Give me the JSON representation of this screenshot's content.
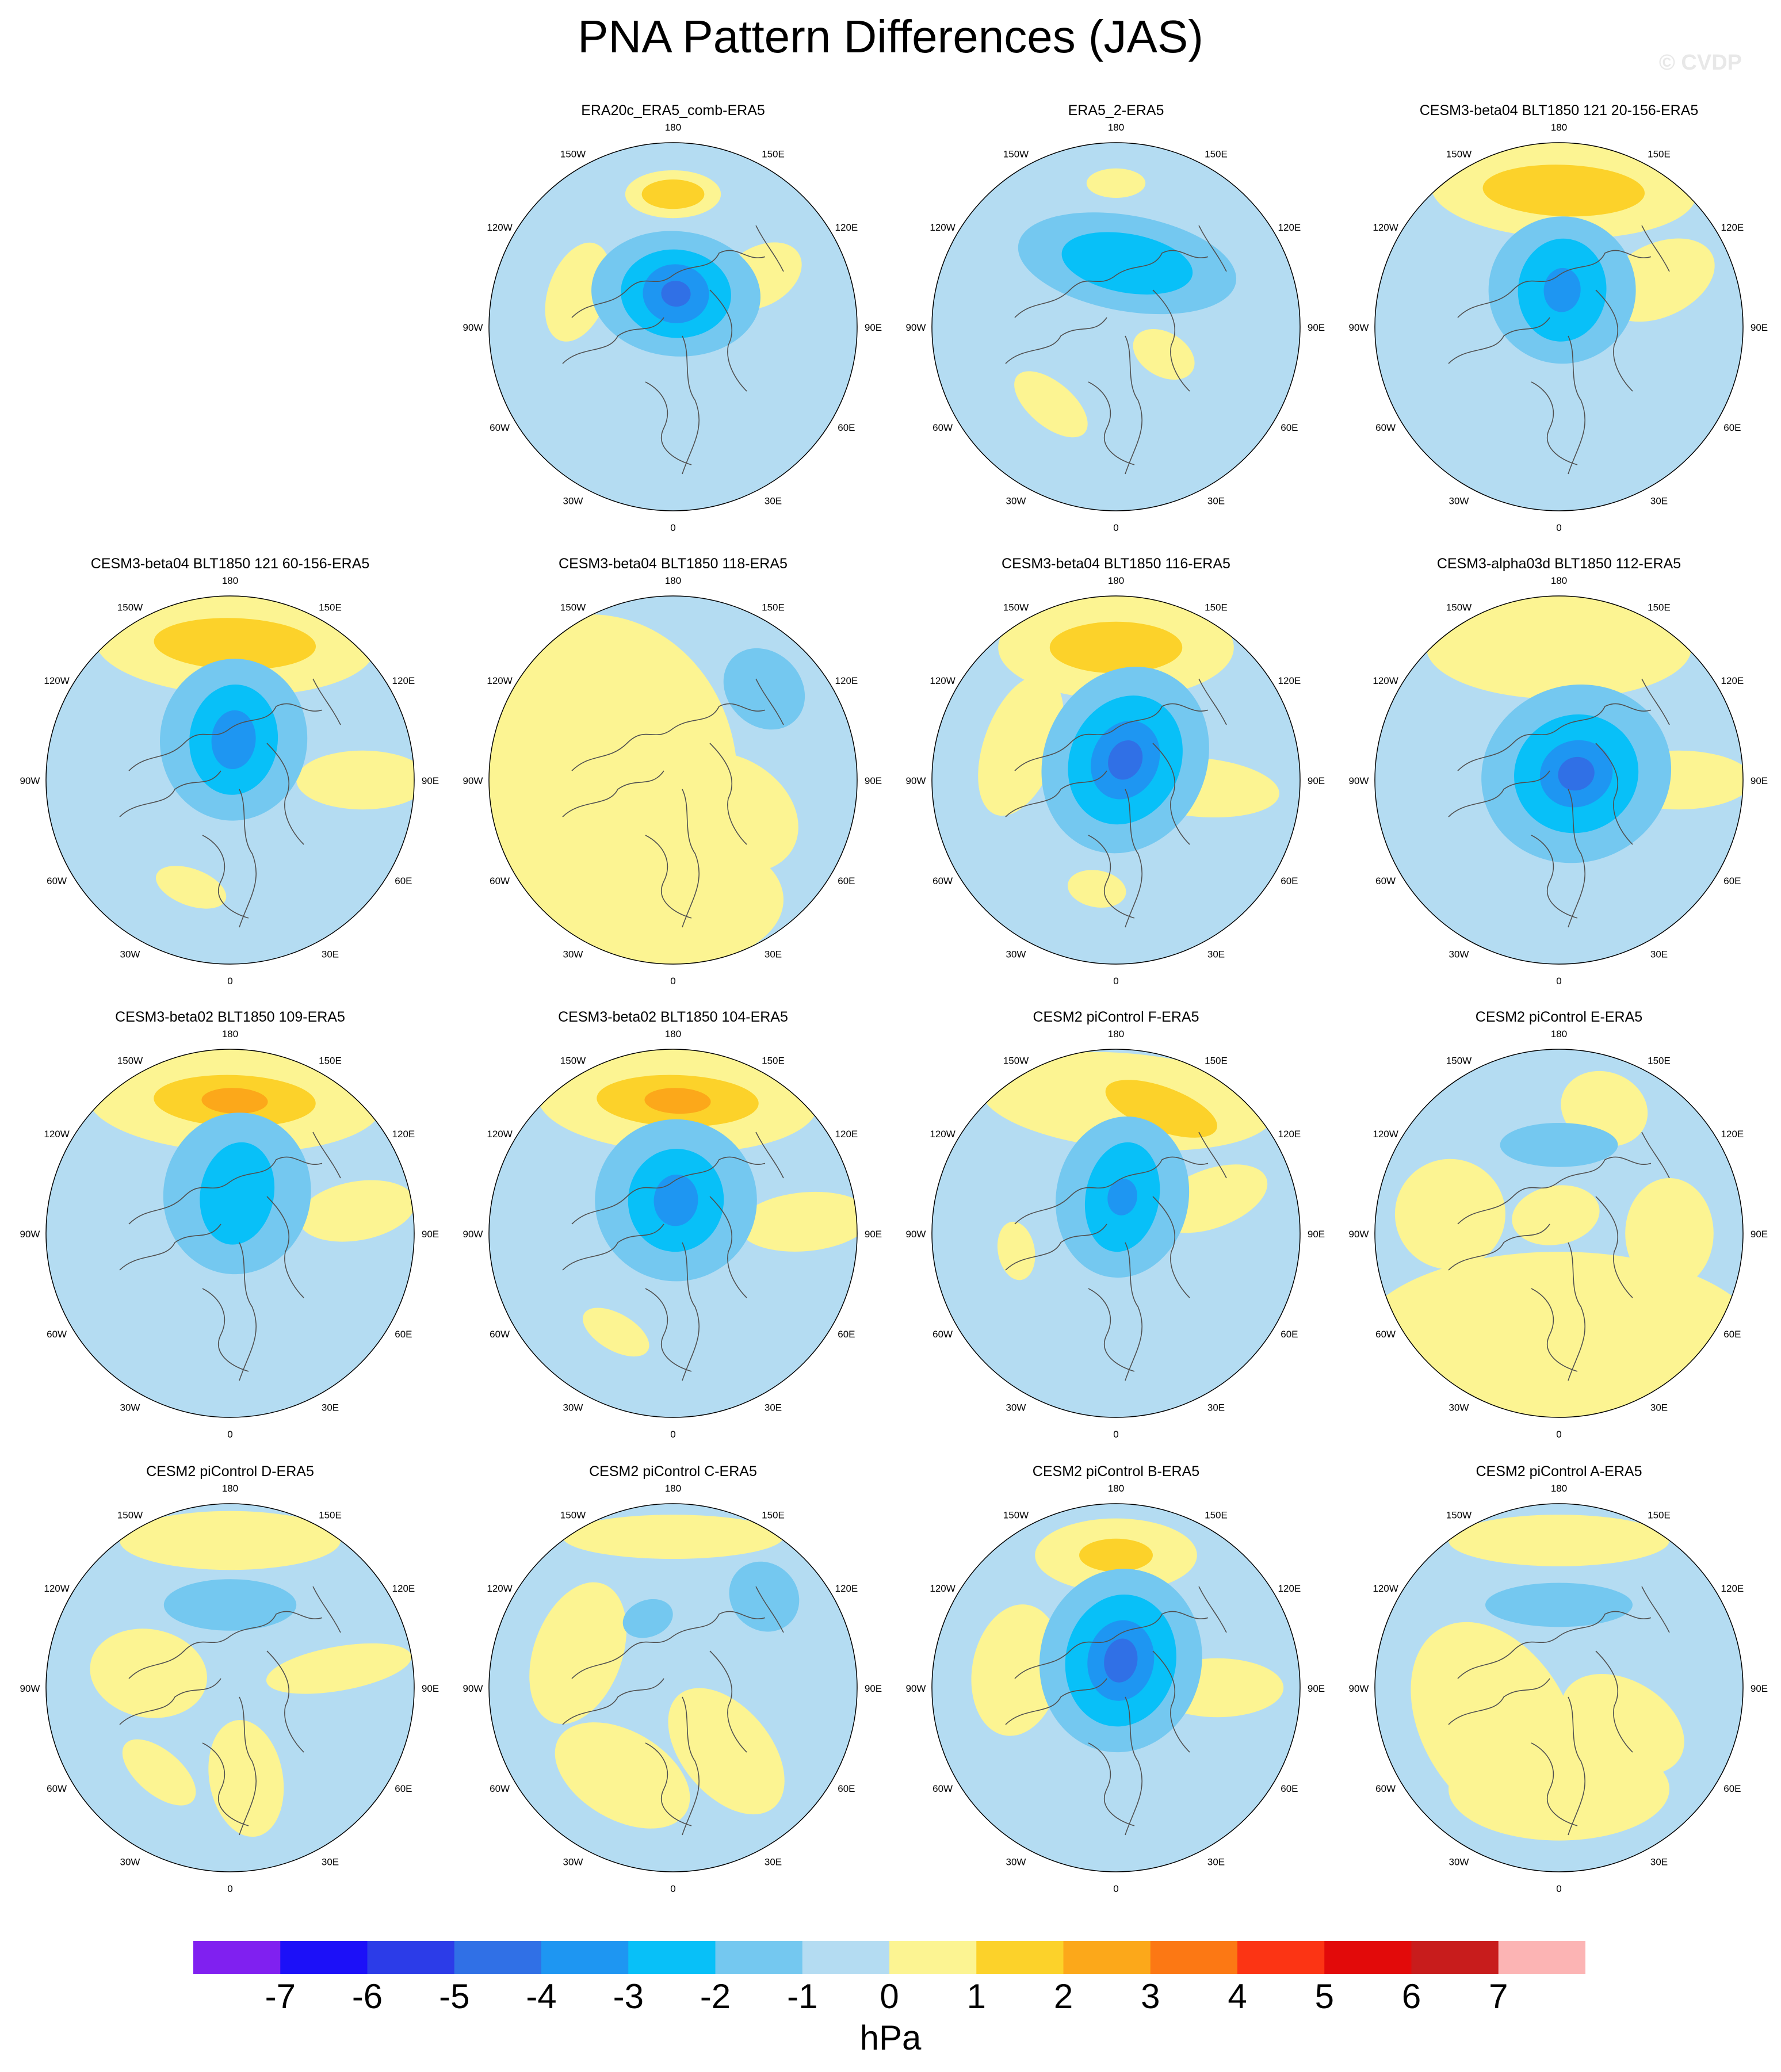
{
  "title": "PNA Pattern Differences (JAS)",
  "watermark": "© CVDP",
  "units": "hPa",
  "colorbar": {
    "ticks": [
      "-7",
      "-6",
      "-5",
      "-4",
      "-3",
      "-2",
      "-1",
      "0",
      "1",
      "2",
      "3",
      "4",
      "5",
      "6",
      "7"
    ],
    "colors": [
      "#8020f0",
      "#1c10f8",
      "#2c3ce8",
      "#3070e6",
      "#1e96f2",
      "#08c0f8",
      "#74c8f0",
      "#b4dcf2",
      "#fcf492",
      "#fcd22a",
      "#fca81a",
      "#fc7814",
      "#fc3414",
      "#e20a0a",
      "#c81c1c",
      "#fcb4b4"
    ]
  },
  "map_style": {
    "ocean_color": "#b4dcf2",
    "coast_color": "#505050",
    "lon_labels": [
      "0",
      "30E",
      "60E",
      "90E",
      "120E",
      "150E",
      "180",
      "150W",
      "120W",
      "90W",
      "60W",
      "30W"
    ]
  },
  "panels": [
    {
      "title": "ERA20c_ERA5_comb-ERA5",
      "row": 0,
      "col": 1,
      "feat": [
        {
          "lon": 180,
          "r": 0.72,
          "rx": 0.13,
          "ry": 0.065,
          "lvl": 1
        },
        {
          "lon": 180,
          "r": 0.72,
          "rx": 0.085,
          "ry": 0.04,
          "lvl": 2
        },
        {
          "lon": -110,
          "r": 0.55,
          "rx": 0.14,
          "ry": 0.08,
          "lvl": 1
        },
        {
          "lon": 120,
          "r": 0.55,
          "rx": 0.08,
          "ry": 0.12,
          "lvl": 1
        },
        {
          "lon": 175,
          "r": 0.18,
          "rx": 0.23,
          "ry": 0.17,
          "lvl": -1
        },
        {
          "lon": 175,
          "r": 0.18,
          "rx": 0.15,
          "ry": 0.12,
          "lvl": -2
        },
        {
          "lon": 175,
          "r": 0.18,
          "rx": 0.09,
          "ry": 0.08,
          "lvl": -3
        },
        {
          "lon": 175,
          "r": 0.18,
          "rx": 0.04,
          "ry": 0.035,
          "lvl": -4
        }
      ]
    },
    {
      "title": "ERA5_2-ERA5",
      "row": 0,
      "col": 2,
      "feat": [
        {
          "lon": 180,
          "r": 0.78,
          "rx": 0.08,
          "ry": 0.04,
          "lvl": 1
        },
        {
          "lon": -40,
          "r": 0.55,
          "rx": 0.12,
          "ry": 0.06,
          "lvl": 1
        },
        {
          "lon": 60,
          "r": 0.3,
          "rx": 0.06,
          "ry": 0.09,
          "lvl": 1
        },
        {
          "lon": 170,
          "r": 0.35,
          "rx": 0.3,
          "ry": 0.13,
          "lvl": -1
        },
        {
          "lon": 170,
          "r": 0.35,
          "rx": 0.18,
          "ry": 0.08,
          "lvl": -2
        }
      ]
    },
    {
      "title": "CESM3-beta04 BLT1850 121 20-156-ERA5",
      "row": 0,
      "col": 3,
      "feat": [
        {
          "lon": 178,
          "r": 0.74,
          "rx": 0.36,
          "ry": 0.13,
          "lvl": 1
        },
        {
          "lon": 178,
          "r": 0.74,
          "rx": 0.22,
          "ry": 0.07,
          "lvl": 2
        },
        {
          "lon": 115,
          "r": 0.6,
          "rx": 0.1,
          "ry": 0.16,
          "lvl": 1
        },
        {
          "lon": 175,
          "r": 0.2,
          "rx": 0.2,
          "ry": 0.2,
          "lvl": -1
        },
        {
          "lon": 175,
          "r": 0.2,
          "rx": 0.12,
          "ry": 0.14,
          "lvl": -2
        },
        {
          "lon": 175,
          "r": 0.2,
          "rx": 0.05,
          "ry": 0.06,
          "lvl": -3
        }
      ]
    },
    {
      "title": "CESM3-beta04 BLT1850 121 60-156-ERA5",
      "row": 1,
      "col": 0,
      "feat": [
        {
          "lon": 178,
          "r": 0.74,
          "rx": 0.38,
          "ry": 0.14,
          "lvl": 1
        },
        {
          "lon": 178,
          "r": 0.74,
          "rx": 0.22,
          "ry": 0.07,
          "lvl": 2
        },
        {
          "lon": -20,
          "r": 0.62,
          "rx": 0.1,
          "ry": 0.05,
          "lvl": 1
        },
        {
          "lon": 90,
          "r": 0.72,
          "rx": 0.08,
          "ry": 0.18,
          "lvl": 1
        },
        {
          "lon": 175,
          "r": 0.22,
          "rx": 0.2,
          "ry": 0.22,
          "lvl": -1
        },
        {
          "lon": 175,
          "r": 0.22,
          "rx": 0.12,
          "ry": 0.15,
          "lvl": -2
        },
        {
          "lon": 175,
          "r": 0.22,
          "rx": 0.06,
          "ry": 0.08,
          "lvl": -3
        }
      ]
    },
    {
      "title": "CESM3-beta04 BLT1850 118-ERA5",
      "row": 1,
      "col": 1,
      "feat": [
        {
          "lon": -90,
          "r": 0.45,
          "rx": 0.45,
          "ry": 0.4,
          "lvl": 1
        },
        {
          "lon": 0,
          "r": 0.65,
          "rx": 0.3,
          "ry": 0.18,
          "lvl": 1
        },
        {
          "lon": 60,
          "r": 0.35,
          "rx": 0.15,
          "ry": 0.2,
          "lvl": 1
        },
        {
          "lon": 135,
          "r": 0.7,
          "rx": 0.12,
          "ry": 0.1,
          "lvl": -1
        }
      ]
    },
    {
      "title": "CESM3-beta04 BLT1850 116-ERA5",
      "row": 1,
      "col": 2,
      "feat": [
        {
          "lon": 180,
          "r": 0.72,
          "rx": 0.32,
          "ry": 0.14,
          "lvl": 1
        },
        {
          "lon": 180,
          "r": 0.72,
          "rx": 0.18,
          "ry": 0.07,
          "lvl": 2
        },
        {
          "lon": -110,
          "r": 0.55,
          "rx": 0.2,
          "ry": 0.1,
          "lvl": 1
        },
        {
          "lon": 85,
          "r": 0.45,
          "rx": 0.08,
          "ry": 0.22,
          "lvl": 1
        },
        {
          "lon": -10,
          "r": 0.6,
          "rx": 0.08,
          "ry": 0.05,
          "lvl": 1
        },
        {
          "lon": 155,
          "r": 0.12,
          "rx": 0.22,
          "ry": 0.26,
          "lvl": -1
        },
        {
          "lon": 155,
          "r": 0.12,
          "rx": 0.15,
          "ry": 0.18,
          "lvl": -2
        },
        {
          "lon": 155,
          "r": 0.12,
          "rx": 0.09,
          "ry": 0.11,
          "lvl": -3
        },
        {
          "lon": 155,
          "r": 0.12,
          "rx": 0.045,
          "ry": 0.055,
          "lvl": -4
        }
      ]
    },
    {
      "title": "CESM3-alpha03d BLT1850 112-ERA5",
      "row": 1,
      "col": 3,
      "feat": [
        {
          "lon": 180,
          "r": 0.72,
          "rx": 0.36,
          "ry": 0.14,
          "lvl": 1
        },
        {
          "lon": 90,
          "r": 0.65,
          "rx": 0.08,
          "ry": 0.2,
          "lvl": 1
        },
        {
          "lon": -60,
          "r": 0.3,
          "rx": 0.06,
          "ry": 0.06,
          "lvl": 1
        },
        {
          "lon": 110,
          "r": 0.1,
          "rx": 0.24,
          "ry": 0.26,
          "lvl": -1
        },
        {
          "lon": 110,
          "r": 0.1,
          "rx": 0.16,
          "ry": 0.17,
          "lvl": -2
        },
        {
          "lon": 110,
          "r": 0.1,
          "rx": 0.09,
          "ry": 0.1,
          "lvl": -3
        },
        {
          "lon": 110,
          "r": 0.1,
          "rx": 0.045,
          "ry": 0.05,
          "lvl": -4
        }
      ]
    },
    {
      "title": "CESM3-beta02 BLT1850 109-ERA5",
      "row": 2,
      "col": 0,
      "feat": [
        {
          "lon": 178,
          "r": 0.72,
          "rx": 0.4,
          "ry": 0.14,
          "lvl": 1
        },
        {
          "lon": 178,
          "r": 0.72,
          "rx": 0.22,
          "ry": 0.07,
          "lvl": 2
        },
        {
          "lon": 178,
          "r": 0.72,
          "rx": 0.09,
          "ry": 0.035,
          "lvl": 3
        },
        {
          "lon": 100,
          "r": 0.7,
          "rx": 0.08,
          "ry": 0.16,
          "lvl": 1
        },
        {
          "lon": 170,
          "r": 0.22,
          "rx": 0.2,
          "ry": 0.22,
          "lvl": -1
        },
        {
          "lon": 170,
          "r": 0.22,
          "rx": 0.1,
          "ry": 0.14,
          "lvl": -2
        }
      ]
    },
    {
      "title": "CESM3-beta02 BLT1850 104-ERA5",
      "row": 2,
      "col": 1,
      "feat": [
        {
          "lon": 178,
          "r": 0.72,
          "rx": 0.38,
          "ry": 0.14,
          "lvl": 1
        },
        {
          "lon": 178,
          "r": 0.72,
          "rx": 0.22,
          "ry": 0.07,
          "lvl": 2
        },
        {
          "lon": 178,
          "r": 0.72,
          "rx": 0.09,
          "ry": 0.035,
          "lvl": 3
        },
        {
          "lon": -30,
          "r": 0.62,
          "rx": 0.1,
          "ry": 0.05,
          "lvl": 1
        },
        {
          "lon": 95,
          "r": 0.72,
          "rx": 0.08,
          "ry": 0.18,
          "lvl": 1
        },
        {
          "lon": 175,
          "r": 0.18,
          "rx": 0.22,
          "ry": 0.22,
          "lvl": -1
        },
        {
          "lon": 175,
          "r": 0.18,
          "rx": 0.13,
          "ry": 0.14,
          "lvl": -2
        },
        {
          "lon": 175,
          "r": 0.18,
          "rx": 0.06,
          "ry": 0.07,
          "lvl": -3
        }
      ]
    },
    {
      "title": "CESM2 piControl F-ERA5",
      "row": 2,
      "col": 2,
      "feat": [
        {
          "lon": 175,
          "r": 0.72,
          "rx": 0.4,
          "ry": 0.13,
          "lvl": 1
        },
        {
          "lon": 160,
          "r": 0.72,
          "rx": 0.16,
          "ry": 0.06,
          "lvl": 2
        },
        {
          "lon": 110,
          "r": 0.55,
          "rx": 0.08,
          "ry": 0.16,
          "lvl": 1
        },
        {
          "lon": -80,
          "r": 0.55,
          "rx": 0.08,
          "ry": 0.05,
          "lvl": 1
        },
        {
          "lon": 170,
          "r": 0.2,
          "rx": 0.18,
          "ry": 0.22,
          "lvl": -1
        },
        {
          "lon": 170,
          "r": 0.2,
          "rx": 0.1,
          "ry": 0.15,
          "lvl": -2
        },
        {
          "lon": 170,
          "r": 0.2,
          "rx": 0.04,
          "ry": 0.05,
          "lvl": -3
        }
      ]
    },
    {
      "title": "CESM2 piControl E-ERA5",
      "row": 2,
      "col": 3,
      "feat": [
        {
          "lon": 0,
          "r": 0.6,
          "rx": 0.55,
          "ry": 0.25,
          "lvl": 1
        },
        {
          "lon": -100,
          "r": 0.6,
          "rx": 0.15,
          "ry": 0.15,
          "lvl": 1
        },
        {
          "lon": 160,
          "r": 0.72,
          "rx": 0.12,
          "ry": 0.1,
          "lvl": 1
        },
        {
          "lon": 90,
          "r": 0.6,
          "rx": 0.15,
          "ry": 0.12,
          "lvl": 1
        },
        {
          "lon": -170,
          "r": 0.1,
          "rx": 0.12,
          "ry": 0.08,
          "lvl": 1
        },
        {
          "lon": 180,
          "r": 0.48,
          "rx": 0.16,
          "ry": 0.06,
          "lvl": -1
        }
      ]
    },
    {
      "title": "CESM2 piControl D-ERA5",
      "row": 3,
      "col": 0,
      "feat": [
        {
          "lon": 180,
          "r": 0.8,
          "rx": 0.3,
          "ry": 0.08,
          "lvl": 1
        },
        {
          "lon": -100,
          "r": 0.45,
          "rx": 0.12,
          "ry": 0.16,
          "lvl": 1
        },
        {
          "lon": 100,
          "r": 0.6,
          "rx": 0.06,
          "ry": 0.2,
          "lvl": 1
        },
        {
          "lon": -40,
          "r": 0.6,
          "rx": 0.12,
          "ry": 0.06,
          "lvl": 1
        },
        {
          "lon": 10,
          "r": 0.5,
          "rx": 0.1,
          "ry": 0.16,
          "lvl": 1
        },
        {
          "lon": 180,
          "r": 0.45,
          "rx": 0.18,
          "ry": 0.07,
          "lvl": -1
        }
      ]
    },
    {
      "title": "CESM2 piControl C-ERA5",
      "row": 3,
      "col": 1,
      "feat": [
        {
          "lon": -110,
          "r": 0.55,
          "rx": 0.2,
          "ry": 0.12,
          "lvl": 1
        },
        {
          "lon": -30,
          "r": 0.55,
          "rx": 0.2,
          "ry": 0.12,
          "lvl": 1
        },
        {
          "lon": 40,
          "r": 0.45,
          "rx": 0.12,
          "ry": 0.2,
          "lvl": 1
        },
        {
          "lon": 180,
          "r": 0.82,
          "rx": 0.3,
          "ry": 0.06,
          "lvl": 1
        },
        {
          "lon": 135,
          "r": 0.7,
          "rx": 0.1,
          "ry": 0.09,
          "lvl": -1
        },
        {
          "lon": -160,
          "r": 0.4,
          "rx": 0.07,
          "ry": 0.05,
          "lvl": -1
        }
      ]
    },
    {
      "title": "CESM2 piControl B-ERA5",
      "row": 3,
      "col": 2,
      "feat": [
        {
          "lon": 180,
          "r": 0.72,
          "rx": 0.22,
          "ry": 0.1,
          "lvl": 1
        },
        {
          "lon": 180,
          "r": 0.72,
          "rx": 0.1,
          "ry": 0.045,
          "lvl": 2
        },
        {
          "lon": -100,
          "r": 0.55,
          "rx": 0.18,
          "ry": 0.12,
          "lvl": 1
        },
        {
          "lon": 90,
          "r": 0.55,
          "rx": 0.08,
          "ry": 0.18,
          "lvl": 1
        },
        {
          "lon": 170,
          "r": 0.15,
          "rx": 0.22,
          "ry": 0.25,
          "lvl": -1
        },
        {
          "lon": 170,
          "r": 0.15,
          "rx": 0.15,
          "ry": 0.18,
          "lvl": -2
        },
        {
          "lon": 170,
          "r": 0.15,
          "rx": 0.09,
          "ry": 0.11,
          "lvl": -3
        },
        {
          "lon": 170,
          "r": 0.15,
          "rx": 0.045,
          "ry": 0.06,
          "lvl": -4
        }
      ]
    },
    {
      "title": "CESM2 piControl A-ERA5",
      "row": 3,
      "col": 3,
      "feat": [
        {
          "lon": -60,
          "r": 0.4,
          "rx": 0.3,
          "ry": 0.2,
          "lvl": 1
        },
        {
          "lon": 0,
          "r": 0.55,
          "rx": 0.3,
          "ry": 0.14,
          "lvl": 1
        },
        {
          "lon": 60,
          "r": 0.4,
          "rx": 0.12,
          "ry": 0.18,
          "lvl": 1
        },
        {
          "lon": 180,
          "r": 0.8,
          "rx": 0.3,
          "ry": 0.07,
          "lvl": 1
        },
        {
          "lon": 180,
          "r": 0.45,
          "rx": 0.2,
          "ry": 0.06,
          "lvl": -1
        }
      ]
    }
  ]
}
